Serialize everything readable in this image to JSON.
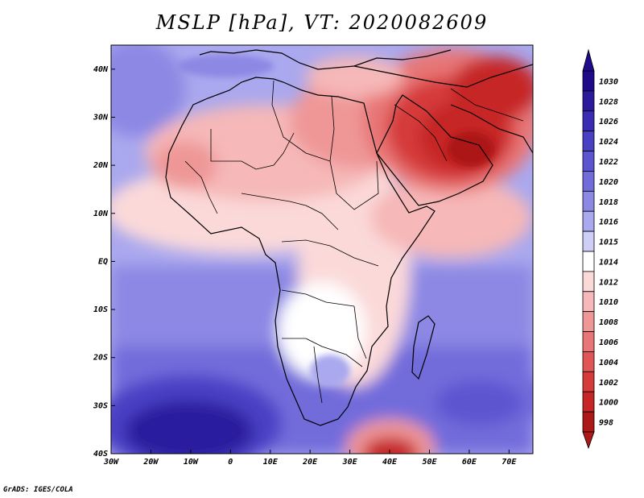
{
  "title": "MSLP [hPa], VT: 2020082609",
  "credit": "GrADS: IGES/COLA",
  "map": {
    "variable": "Mean sea level pressure",
    "units": "hPa",
    "lon_range": [
      -30,
      76
    ],
    "lat_range": [
      -40,
      45
    ],
    "x_ticks": [
      {
        "lon": -30,
        "label": "30W"
      },
      {
        "lon": -20,
        "label": "20W"
      },
      {
        "lon": -10,
        "label": "10W"
      },
      {
        "lon": 0,
        "label": "0"
      },
      {
        "lon": 10,
        "label": "10E"
      },
      {
        "lon": 20,
        "label": "20E"
      },
      {
        "lon": 30,
        "label": "30E"
      },
      {
        "lon": 40,
        "label": "40E"
      },
      {
        "lon": 50,
        "label": "50E"
      },
      {
        "lon": 60,
        "label": "60E"
      },
      {
        "lon": 70,
        "label": "70E"
      }
    ],
    "y_ticks": [
      {
        "lat": 40,
        "label": "40N"
      },
      {
        "lat": 30,
        "label": "30N"
      },
      {
        "lat": 20,
        "label": "20N"
      },
      {
        "lat": 10,
        "label": "10N"
      },
      {
        "lat": 0,
        "label": "EQ"
      },
      {
        "lat": -10,
        "label": "10S"
      },
      {
        "lat": -20,
        "label": "20S"
      },
      {
        "lat": -30,
        "label": "30S"
      },
      {
        "lat": -40,
        "label": "40S"
      }
    ]
  },
  "colorbar": {
    "levels": [
      {
        "label": "1030",
        "color": "#1f0a8a"
      },
      {
        "label": "1028",
        "color": "#2b1a9e"
      },
      {
        "label": "1026",
        "color": "#3a2db4"
      },
      {
        "label": "1024",
        "color": "#4a40c4"
      },
      {
        "label": "1022",
        "color": "#5d55d0"
      },
      {
        "label": "1020",
        "color": "#726cdb"
      },
      {
        "label": "1018",
        "color": "#8c88e4"
      },
      {
        "label": "1016",
        "color": "#aaa8ee"
      },
      {
        "label": "1015",
        "color": "#cfcef7"
      },
      {
        "label": "1014",
        "color": "#ffffff"
      },
      {
        "label": "1012",
        "color": "#fbd9d9"
      },
      {
        "label": "1010",
        "color": "#f6b8b8"
      },
      {
        "label": "1008",
        "color": "#ef9797"
      },
      {
        "label": "1006",
        "color": "#e87676"
      },
      {
        "label": "1004",
        "color": "#e05656"
      },
      {
        "label": "1002",
        "color": "#d63b3b"
      },
      {
        "label": "1000",
        "color": "#c62626"
      },
      {
        "label": "998",
        "color": "#ad1818"
      }
    ]
  }
}
